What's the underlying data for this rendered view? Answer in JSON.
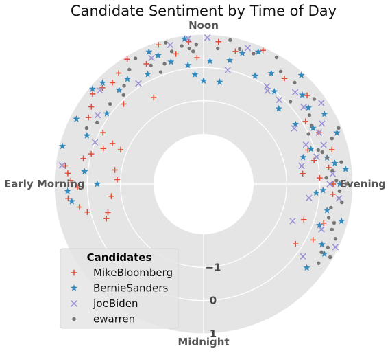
{
  "chart_data": {
    "type": "scatter",
    "projection": "polar-time-of-day",
    "title": "Candidate Sentiment by Time of Day",
    "angle_labels": [
      "Noon",
      "Evening",
      "Midnight",
      "Early Morning"
    ],
    "angle_label_keys": [
      "noon",
      "evening",
      "midnight",
      "early-morning"
    ],
    "radial_tick_labels": [
      "−1",
      "0",
      "1"
    ],
    "radial_ticks": [
      -1,
      0,
      1
    ],
    "rlim": [
      -2,
      1
    ],
    "grid": true,
    "legend": {
      "title": "Candidates",
      "placement": "lower-left"
    },
    "x_unit": "hour of day (0-24, midnight at bottom, noon at top)",
    "y_unit": "sentiment",
    "series": [
      {
        "name": "MikeBloomberg",
        "color": "#E24A33",
        "marker": "plus",
        "points": [
          [
            7.3,
            -0.3
          ],
          [
            7.0,
            0.0
          ],
          [
            6.8,
            0.2
          ],
          [
            6.5,
            0.7
          ],
          [
            6.3,
            0.6
          ],
          [
            6.1,
            0.5
          ],
          [
            5.9,
            0.3
          ],
          [
            5.6,
            0.6
          ],
          [
            5.3,
            0.3
          ],
          [
            5.1,
            0.1
          ],
          [
            4.9,
            -0.5
          ],
          [
            4.7,
            -0.4
          ],
          [
            6.6,
            -0.8
          ],
          [
            6.2,
            -0.9
          ],
          [
            5.5,
            -0.7
          ],
          [
            7.6,
            -0.5
          ],
          [
            7.8,
            -0.1
          ],
          [
            8.0,
            0.5
          ],
          [
            8.3,
            0.6
          ],
          [
            8.6,
            0.8
          ],
          [
            8.9,
            0.7
          ],
          [
            9.2,
            0.6
          ],
          [
            9.5,
            0.7
          ],
          [
            9.9,
            0.9
          ],
          [
            10.3,
            0.5
          ],
          [
            10.8,
            0.9
          ],
          [
            11.2,
            0.5
          ],
          [
            11.6,
            0.8
          ],
          [
            11.8,
            0.3
          ],
          [
            9.0,
            -0.1
          ],
          [
            10.0,
            -0.5
          ],
          [
            7.5,
            -0.8
          ],
          [
            12.4,
            0.8
          ],
          [
            12.9,
            0.6
          ],
          [
            13.6,
            0.9
          ],
          [
            14.5,
            0.5
          ],
          [
            15.3,
            0.6
          ],
          [
            15.9,
            0.1
          ],
          [
            16.4,
            0.3
          ],
          [
            17.0,
            0.5
          ],
          [
            17.2,
            -0.1
          ],
          [
            17.5,
            0.3
          ],
          [
            18.0,
            0.4
          ],
          [
            18.3,
            0.4
          ],
          [
            17.6,
            -0.5
          ],
          [
            16.8,
            -0.2
          ],
          [
            19.3,
            -0.3
          ],
          [
            19.2,
            0.3
          ],
          [
            19.8,
            0.2
          ],
          [
            20.2,
            -0.2
          ],
          [
            17.8,
            0.0
          ]
        ]
      },
      {
        "name": "BernieSanders",
        "color": "#348ABD",
        "marker": "star",
        "points": [
          [
            5.8,
            0.6
          ],
          [
            5.5,
            0.5
          ],
          [
            6.4,
            0.1
          ],
          [
            6.0,
            -0.3
          ],
          [
            7.0,
            0.9
          ],
          [
            7.5,
            0.3
          ],
          [
            7.8,
            0.8
          ],
          [
            8.4,
            0.1
          ],
          [
            9.0,
            0.8
          ],
          [
            9.2,
            0.3
          ],
          [
            9.6,
            0.4
          ],
          [
            10.2,
            0.2
          ],
          [
            10.5,
            0.8
          ],
          [
            11.0,
            0.3
          ],
          [
            11.5,
            0.9
          ],
          [
            11.5,
            0.1
          ],
          [
            11.7,
            -0.2
          ],
          [
            12.0,
            -0.4
          ],
          [
            12.2,
            0.2
          ],
          [
            12.6,
            -0.4
          ],
          [
            13.1,
            0.6
          ],
          [
            13.5,
            0.8
          ],
          [
            13.7,
            0.1
          ],
          [
            14.1,
            0.4
          ],
          [
            14.5,
            0.0
          ],
          [
            15.2,
            0.5
          ],
          [
            15.6,
            0.4
          ],
          [
            15.0,
            -0.3
          ],
          [
            16.0,
            0.7
          ],
          [
            16.2,
            0.2
          ],
          [
            16.6,
            0.8
          ],
          [
            16.8,
            -0.1
          ],
          [
            17.0,
            -0.4
          ],
          [
            17.2,
            0.3
          ],
          [
            17.4,
            0.5
          ],
          [
            17.6,
            0.8
          ],
          [
            18.0,
            0.6
          ],
          [
            18.2,
            0.1
          ],
          [
            18.3,
            -0.1
          ],
          [
            18.8,
            0.3
          ],
          [
            19.0,
            0.8
          ],
          [
            19.3,
            0.2
          ],
          [
            19.8,
            0.5
          ],
          [
            20.0,
            0.7
          ],
          [
            20.6,
            0.5
          ],
          [
            12.8,
            0.3
          ],
          [
            14.8,
            0.9
          ],
          [
            15.8,
            -0.2
          ],
          [
            8.7,
            0.9
          ],
          [
            10.7,
            0.6
          ]
        ]
      },
      {
        "name": "JoeBiden",
        "color": "#988ED5",
        "marker": "x",
        "points": [
          [
            11.6,
            0.9
          ],
          [
            11.1,
            0.8
          ],
          [
            12.1,
            0.9
          ],
          [
            12.8,
            0.0
          ],
          [
            13.2,
            0.8
          ],
          [
            14.2,
            0.0
          ],
          [
            14.3,
            -0.1
          ],
          [
            14.8,
            -0.1
          ],
          [
            15.0,
            0.4
          ],
          [
            15.5,
            0.3
          ],
          [
            15.7,
            0.8
          ],
          [
            15.9,
            -0.3
          ],
          [
            16.2,
            0.5
          ],
          [
            16.4,
            0.3
          ],
          [
            16.6,
            -0.2
          ],
          [
            16.8,
            0.3
          ],
          [
            17.1,
            0.0
          ],
          [
            17.3,
            -0.5
          ],
          [
            17.7,
            0.4
          ],
          [
            18.0,
            0.3
          ],
          [
            18.4,
            0.6
          ],
          [
            19.4,
            0.3
          ],
          [
            19.7,
            0.9
          ],
          [
            19.5,
            -0.6
          ],
          [
            6.5,
            0.8
          ],
          [
            7.4,
            0.0
          ],
          [
            8.2,
            0.3
          ],
          [
            8.8,
            0.7
          ],
          [
            9.8,
            0.1
          ],
          [
            10.5,
            0.6
          ],
          [
            18.5,
            -0.3
          ],
          [
            20.4,
            0.2
          ]
        ]
      },
      {
        "name": "ewarren",
        "color": "#777777",
        "marker": "dot",
        "points": [
          [
            11.7,
            0.5
          ],
          [
            11.8,
            0.7
          ],
          [
            11.6,
            0.6
          ],
          [
            11.4,
            0.7
          ],
          [
            11.1,
            0.6
          ],
          [
            12.4,
            0.6
          ],
          [
            12.7,
            0.9
          ],
          [
            13.0,
            0.7
          ],
          [
            13.4,
            0.7
          ],
          [
            14.0,
            0.9
          ],
          [
            14.3,
            0.6
          ],
          [
            14.8,
            0.6
          ],
          [
            15.1,
            0.1
          ],
          [
            15.5,
            0.7
          ],
          [
            15.8,
            0.3
          ],
          [
            16.1,
            0.2
          ],
          [
            16.3,
            0.0
          ],
          [
            16.7,
            0.6
          ],
          [
            16.9,
            0.1
          ],
          [
            17.0,
            0.2
          ],
          [
            17.2,
            0.3
          ],
          [
            17.4,
            0.7
          ],
          [
            17.6,
            0.4
          ],
          [
            17.8,
            0.2
          ],
          [
            18.0,
            0.8
          ],
          [
            18.2,
            0.6
          ],
          [
            18.5,
            0.7
          ],
          [
            18.7,
            0.4
          ],
          [
            19.0,
            0.4
          ],
          [
            19.1,
            0.6
          ],
          [
            19.3,
            0.6
          ],
          [
            19.5,
            0.8
          ],
          [
            19.8,
            0.7
          ],
          [
            20.0,
            0.9
          ],
          [
            20.3,
            0.7
          ],
          [
            20.0,
            0.6
          ],
          [
            17.9,
            0.5
          ],
          [
            16.5,
            0.9
          ],
          [
            8.7,
            0.2
          ],
          [
            9.4,
            0.3
          ],
          [
            9.8,
            0.6
          ],
          [
            10.1,
            0.8
          ],
          [
            10.4,
            0.4
          ],
          [
            10.8,
            0.3
          ],
          [
            11.0,
            0.9
          ],
          [
            10.6,
            0.1
          ],
          [
            9.2,
            0.1
          ],
          [
            8.0,
            0.2
          ],
          [
            7.7,
            0.4
          ]
        ]
      }
    ]
  }
}
